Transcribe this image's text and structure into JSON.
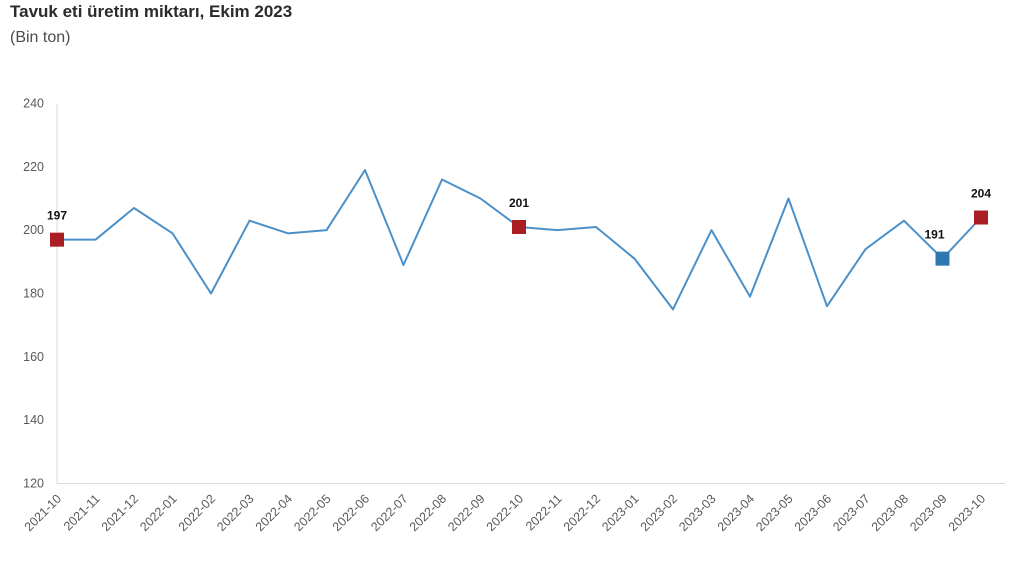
{
  "header": {
    "title": "Tavuk eti üretim miktarı, Ekim 2023",
    "subtitle": "(Bin ton)"
  },
  "chart_data": {
    "type": "line",
    "title": "Tavuk eti üretim miktarı, Ekim 2023",
    "subtitle": "(Bin ton)",
    "x": [
      "2021-10",
      "2021-11",
      "2021-12",
      "2022-01",
      "2022-02",
      "2022-03",
      "2022-04",
      "2022-05",
      "2022-06",
      "2022-07",
      "2022-08",
      "2022-09",
      "2022-10",
      "2022-11",
      "2022-12",
      "2023-01",
      "2023-02",
      "2023-03",
      "2023-04",
      "2023-05",
      "2023-06",
      "2023-07",
      "2023-08",
      "2023-09",
      "2023-10"
    ],
    "values": [
      197,
      197,
      207,
      199,
      180,
      203,
      199,
      200,
      219,
      189,
      216,
      210,
      201,
      200,
      201,
      191,
      175,
      200,
      179,
      210,
      176,
      194,
      203,
      191,
      204
    ],
    "ylim": [
      120,
      240
    ],
    "yticks": [
      120,
      140,
      160,
      180,
      200,
      220,
      240
    ],
    "grid": false,
    "legend": "none",
    "line_color": "#4b90c8",
    "axis_color": "#d9d9d9",
    "tick_label_color": "#595959",
    "data_label_color": "#111111",
    "marker_colors": {
      "red": "#a91e22",
      "blue": "#2e78b2"
    },
    "marked_points": [
      {
        "index": 0,
        "category": "2021-10",
        "label": "197",
        "color": "#a91e22"
      },
      {
        "index": 12,
        "category": "2022-10",
        "label": "201",
        "color": "#a91e22"
      },
      {
        "index": 23,
        "category": "2023-09",
        "label": "191",
        "color": "#2e78b2",
        "label_dx": -8
      },
      {
        "index": 24,
        "category": "2023-10",
        "label": "204",
        "color": "#a91e22"
      }
    ]
  }
}
